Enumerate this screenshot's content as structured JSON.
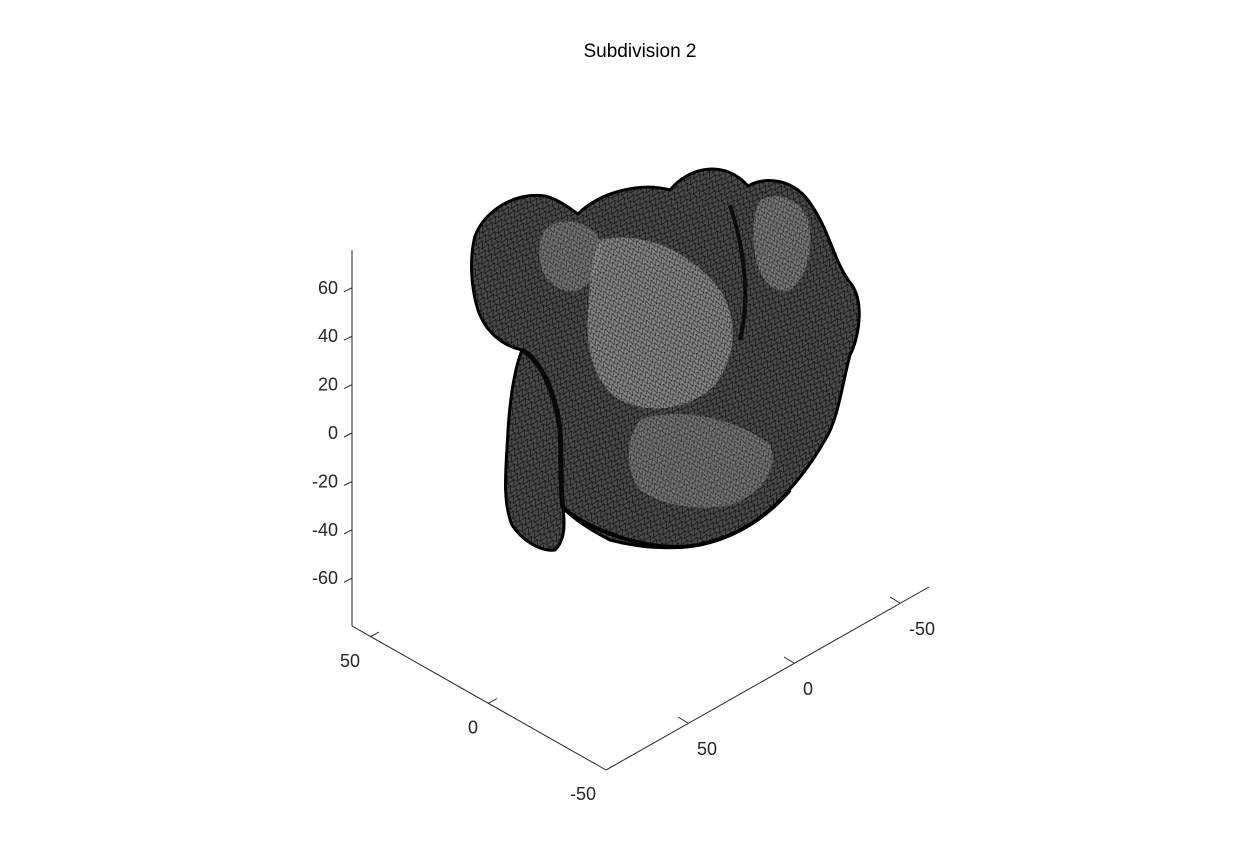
{
  "title": "Subdivision 2",
  "chart_data": {
    "type": "surface-mesh",
    "title": "Subdivision 2",
    "view": "3d",
    "grid": false,
    "surface_color": "#3a3a3a",
    "edge_color": "#000000",
    "x_axis": {
      "ticks": [
        -50,
        0,
        50
      ],
      "tick_labels": [
        "-50",
        "0",
        "50"
      ]
    },
    "y_axis": {
      "ticks": [
        -50,
        0,
        50
      ],
      "tick_labels": [
        "-50",
        "0",
        "50"
      ]
    },
    "z_axis": {
      "ticks": [
        -60,
        -40,
        -20,
        0,
        20,
        40,
        60
      ],
      "tick_labels": [
        "-60",
        "-40",
        "-20",
        "0",
        "20",
        "40",
        "60"
      ]
    }
  }
}
